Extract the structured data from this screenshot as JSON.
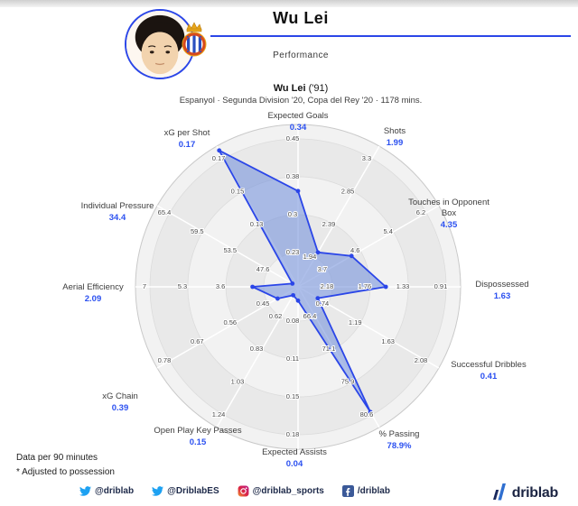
{
  "header": {
    "title": "Wu Lei",
    "section_label": "Performance",
    "player_name": "Wu Lei",
    "player_year": " ('91)",
    "meta": "Espanyol · Segunda Division '20, Copa del Rey '20 · 1178 mins.",
    "accent_color": "#2b46e8"
  },
  "chart_data": {
    "type": "radar",
    "title": "Wu Lei ('91) Performance",
    "legend_position": "none",
    "grid": true,
    "rings": 4,
    "value_color": "#2b50f0",
    "label_color": "#3d3d3d",
    "tick_color": "#4a4a4a",
    "polygon_fill": "rgba(120,148,220,0.6)",
    "polygon_stroke": "#2b46e8",
    "axes": [
      {
        "label": [
          "Expected Goals"
        ],
        "value": "0.34",
        "ticks": [
          "0.45",
          "0.38",
          "0.3",
          "0.23"
        ],
        "frac": 0.59
      },
      {
        "label": [
          "Shots"
        ],
        "value": "1.99",
        "ticks": [
          "3.3",
          "2.85",
          "2.39",
          "1.94"
        ],
        "frac": 0.245
      },
      {
        "label": [
          "Touches in Opponent",
          "Box"
        ],
        "value": "4.35",
        "ticks": [
          "6.2",
          "5.4",
          "4.6",
          "3.7"
        ],
        "frac": 0.38
      },
      {
        "label": [
          "Dispossessed"
        ],
        "value": "1.63",
        "ticks": [
          "0.91",
          "1.33",
          "1.76",
          "2.18"
        ],
        "frac": 0.54
      },
      {
        "label": [
          "Successful Dribbles"
        ],
        "value": "0.41",
        "ticks": [
          "2.08",
          "1.63",
          "1.19",
          "0.74"
        ],
        "frac": 0.14
      },
      {
        "label": [
          "% Passing"
        ],
        "value": "78.9%",
        "ticks": [
          "80.6",
          "75.9",
          "71.1",
          "66.4"
        ],
        "frac": 0.89
      },
      {
        "label": [
          "Expected Assists"
        ],
        "value": "0.04",
        "ticks": [
          "0.18",
          "0.15",
          "0.11",
          "0.08"
        ],
        "frac": 0.085
      },
      {
        "label": [
          "Open Play Key Passes"
        ],
        "value": "0.15",
        "ticks": [
          "1.24",
          "1.03",
          "0.83",
          "0.62"
        ],
        "frac": 0.06
      },
      {
        "label": [
          "xG Chain"
        ],
        "value": "0.39",
        "ticks": [
          "0.78",
          "0.67",
          "0.56",
          "0.45"
        ],
        "frac": 0.145
      },
      {
        "label": [
          "Aerial Efficiency"
        ],
        "value": "2.09",
        "ticks": [
          "7",
          "5.3",
          "3.6"
        ],
        "frac": 0.28
      },
      {
        "label": [
          "Individual Pressure"
        ],
        "value": "34.4",
        "ticks": [
          "65.4",
          "59.5",
          "53.5",
          "47.6"
        ],
        "frac": 0.04
      },
      {
        "label": [
          "xG per Shot"
        ],
        "value": "0.17",
        "ticks": [
          "0.17",
          "0.15",
          "0.13"
        ],
        "frac": 0.97
      }
    ]
  },
  "footnotes": [
    "Data per 90 minutes",
    "* Adjusted to possession"
  ],
  "social": [
    {
      "icon": "twitter",
      "handle": "@driblab"
    },
    {
      "icon": "twitter",
      "handle": "@DriblabES"
    },
    {
      "icon": "instagram",
      "handle": "@driblab_sports"
    },
    {
      "icon": "facebook",
      "handle": "/driblab"
    }
  ],
  "brand": {
    "logo_text": "driblab"
  },
  "colors": {
    "twitter": "#1da1f2",
    "facebook": "#3b5998",
    "navy": "#1e2a4a"
  }
}
